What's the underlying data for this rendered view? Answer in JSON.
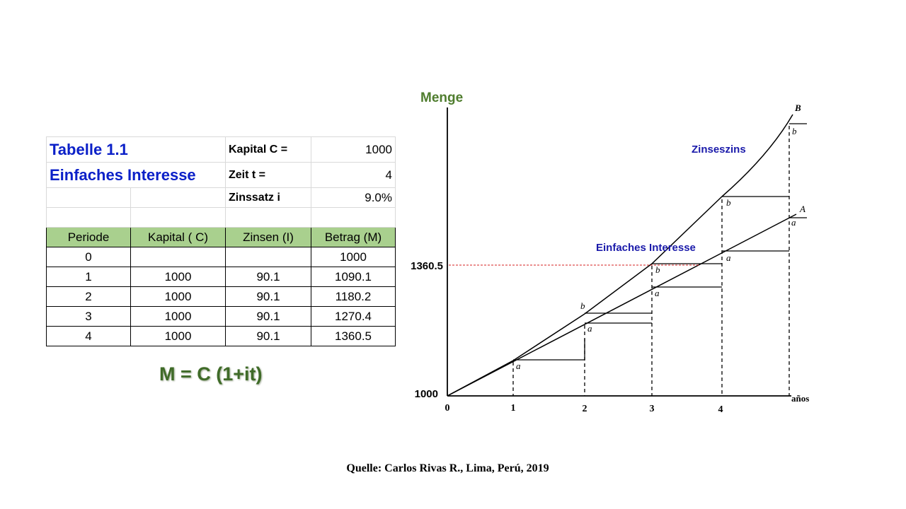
{
  "table": {
    "title1": "Tabelle 1.1",
    "title2": "Einfaches Interesse",
    "params": [
      {
        "label": "Kapital C =",
        "value": "1000"
      },
      {
        "label": "Zeit t =",
        "value": "4"
      },
      {
        "label": "Zinssatz i",
        "value": "9.0%"
      }
    ],
    "headers": [
      "Periode",
      "Kapital ( C)",
      "Zinsen (I)",
      "Betrag (M)"
    ],
    "rows": [
      [
        "0",
        "",
        "",
        "1000"
      ],
      [
        "1",
        "1000",
        "90.1",
        "1090.1"
      ],
      [
        "2",
        "1000",
        "90.1",
        "1180.2"
      ],
      [
        "3",
        "1000",
        "90.1",
        "1270.4"
      ],
      [
        "4",
        "1000",
        "90.1",
        "1360.5"
      ]
    ]
  },
  "formula": "M = C (1+it)",
  "chart": {
    "yaxis_label": "Menge",
    "xaxis_label": "años",
    "x_ticks": [
      "0",
      "1",
      "2",
      "3",
      "4"
    ],
    "y_marks": [
      "1000",
      "1360.5"
    ],
    "curve_labels": {
      "compound": "Zinseszins",
      "simple": "Einfaches Interesse"
    },
    "line_letters": {
      "compound": "B",
      "simple": "A"
    },
    "step_letters": {
      "a": "a",
      "b": "b"
    },
    "colors": {
      "label_blue": "#1a1aaa",
      "axis_title_green": "#4f7d2e",
      "ref_line_red": "#d42020"
    }
  },
  "source": "Quelle: Carlos Rivas R., Lima, Perú, 2019"
}
